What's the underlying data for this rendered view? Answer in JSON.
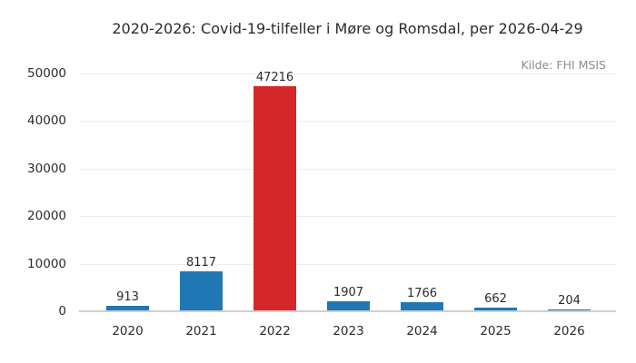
{
  "title": "2020-2026: Covid-19-tilfeller i Møre og Romsdal, per 2026-04-29",
  "source": "Kilde: FHI MSIS",
  "colors": {
    "bar_default": "#1f77b4",
    "bar_highlight": "#d62728",
    "gridline": "#ececec",
    "baseline": "#cfcfcf",
    "text": "#2b2b2b",
    "muted_text": "#8c8c8c",
    "background": "#ffffff"
  },
  "chart_data": {
    "type": "bar",
    "title": "2020-2026: Covid-19-tilfeller i Møre og Romsdal, per 2026-04-29",
    "annotation": "Kilde: FHI MSIS",
    "categories": [
      "2020",
      "2021",
      "2022",
      "2023",
      "2024",
      "2025",
      "2026"
    ],
    "values": [
      913,
      8117,
      47216,
      1907,
      1766,
      662,
      204
    ],
    "value_labels": [
      "913",
      "8117",
      "47216",
      "1907",
      "1766",
      "662",
      "204"
    ],
    "bar_colors": [
      "#1f77b4",
      "#1f77b4",
      "#d62728",
      "#1f77b4",
      "#1f77b4",
      "#1f77b4",
      "#1f77b4"
    ],
    "highlighted_category": "2022",
    "xlabel": "",
    "ylabel": "",
    "ylim": [
      0,
      50000
    ],
    "yticks": [
      0,
      10000,
      20000,
      30000,
      40000,
      50000
    ],
    "ytick_labels": [
      "0",
      "10000",
      "20000",
      "30000",
      "40000",
      "50000"
    ],
    "grid": true,
    "legend": null
  }
}
